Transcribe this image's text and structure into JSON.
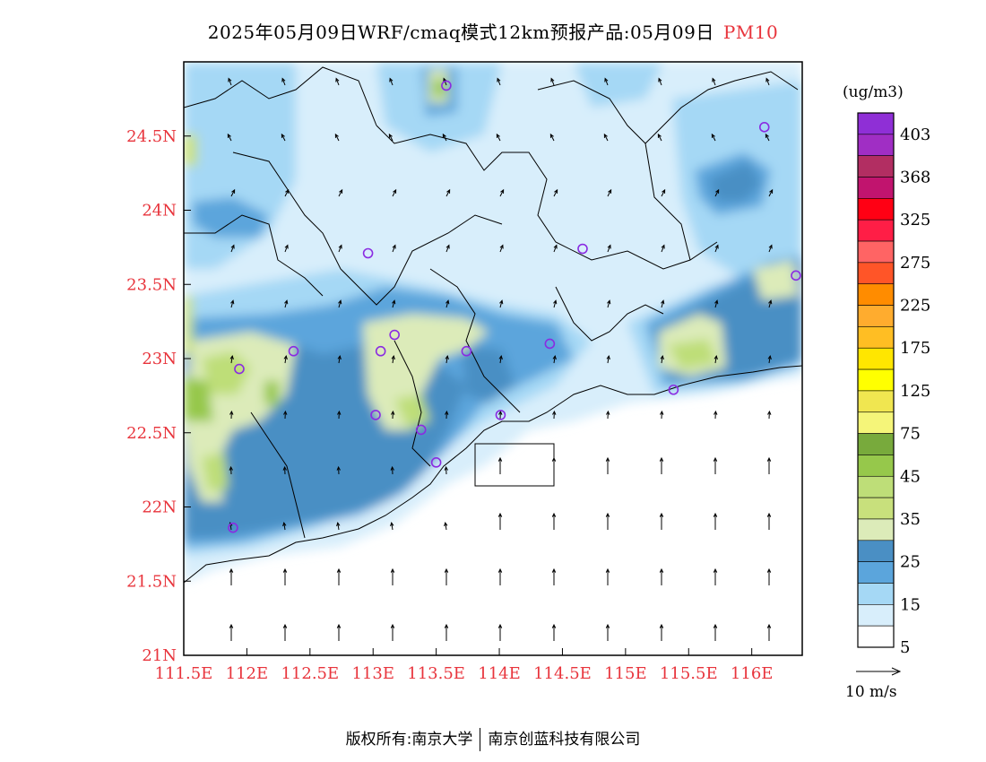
{
  "header": {
    "title": "2025年05月09日WRF/cmaq模式12km预报产品:05月09日",
    "pollutant": "PM10"
  },
  "map": {
    "lon_labels": [
      "111.5E",
      "112E",
      "112.5E",
      "113E",
      "113.5E",
      "114E",
      "114.5E",
      "115E",
      "115.5E",
      "116E"
    ],
    "lat_labels": [
      "24.5N",
      "24N",
      "23.5N",
      "23N",
      "22.5N",
      "22N",
      "21.5N",
      "21N"
    ],
    "lon_range": [
      111.5,
      116.4
    ],
    "lat_range": [
      21.0,
      25.0
    ],
    "stations": [
      {
        "lon": 113.58,
        "lat": 24.84
      },
      {
        "lon": 112.96,
        "lat": 23.71
      },
      {
        "lon": 113.06,
        "lat": 23.05
      },
      {
        "lon": 113.17,
        "lat": 23.16
      },
      {
        "lon": 112.37,
        "lat": 23.05
      },
      {
        "lon": 111.94,
        "lat": 22.93
      },
      {
        "lon": 113.02,
        "lat": 22.62
      },
      {
        "lon": 113.38,
        "lat": 22.52
      },
      {
        "lon": 113.5,
        "lat": 22.3
      },
      {
        "lon": 113.74,
        "lat": 23.05
      },
      {
        "lon": 114.01,
        "lat": 22.62
      },
      {
        "lon": 114.4,
        "lat": 23.1
      },
      {
        "lon": 114.66,
        "lat": 23.74
      },
      {
        "lon": 116.1,
        "lat": 24.56
      },
      {
        "lon": 116.35,
        "lat": 23.56
      },
      {
        "lon": 115.38,
        "lat": 22.79
      },
      {
        "lon": 111.89,
        "lat": 21.86
      }
    ],
    "wind_vector_scale": "10 m/s"
  },
  "colorbar": {
    "unit": "(ug/m3)",
    "labels": [
      "403",
      "368",
      "325",
      "275",
      "225",
      "175",
      "125",
      "75",
      "45",
      "35",
      "25",
      "15",
      "5"
    ],
    "colors": [
      "#8f2fd6",
      "#a02ec4",
      "#b22e62",
      "#c1146e",
      "#ff0014",
      "#ff1e46",
      "#ff6464",
      "#ff5528",
      "#ff8c00",
      "#ffac2e",
      "#ffbe23",
      "#ffe600",
      "#ffff00",
      "#f0e650",
      "#f5f579",
      "#78aa3c",
      "#96c84b",
      "#bede78",
      "#c8e07c",
      "#dcebb9",
      "#4a8fc4",
      "#5ba5dc",
      "#a5d8f5",
      "#d8eefb",
      "#ffffff"
    ]
  },
  "footer": {
    "left": "版权所有:南京大学",
    "right": "南京创蓝科技有限公司"
  }
}
